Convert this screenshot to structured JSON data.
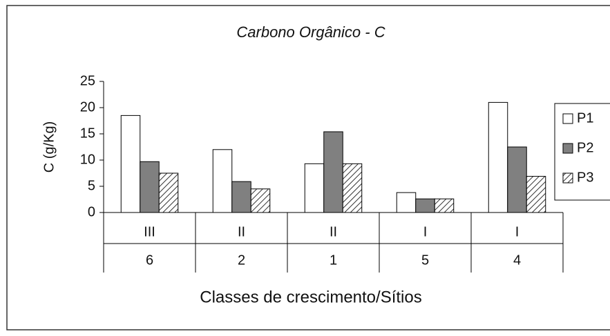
{
  "chart_data": {
    "type": "bar",
    "title": "Carbono Orgânico - C",
    "ylabel": "C (g/Kg)",
    "xlabel": "Classes de crescimento/Sítios",
    "classes": [
      "III",
      "II",
      "II",
      "I",
      "I"
    ],
    "categories": [
      "6",
      "2",
      "1",
      "5",
      "4"
    ],
    "series": [
      {
        "name": "P1",
        "color": "#ffffff",
        "values": [
          18.5,
          12,
          9.3,
          3.8,
          21
        ]
      },
      {
        "name": "P2",
        "color": "#808080",
        "values": [
          9.7,
          5.9,
          15.4,
          2.6,
          12.5
        ]
      },
      {
        "name": "P3",
        "color": "#ffffff",
        "hatch": true,
        "values": [
          7.5,
          4.5,
          9.3,
          2.6,
          6.9
        ]
      }
    ],
    "ylim": [
      0,
      25
    ],
    "yticks": [
      0,
      5,
      10,
      15,
      20,
      25
    ],
    "grid": false,
    "legend": "right"
  }
}
